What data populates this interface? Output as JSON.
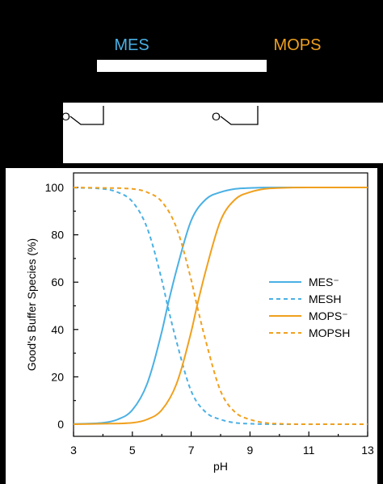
{
  "header": {
    "mes_label": "MES",
    "mops_label": "MOPS",
    "mes_color": "#4ab0e4",
    "mops_color": "#f0a01e"
  },
  "structures": {
    "mes_atom": "O",
    "mops_atom": "O"
  },
  "chart_data": {
    "type": "line",
    "xlabel": "pH",
    "ylabel": "Good's Buffer Species (%)",
    "xlim": [
      3,
      13
    ],
    "ylim": [
      0,
      100
    ],
    "xticks": [
      3,
      5,
      7,
      9,
      11,
      13
    ],
    "yticks": [
      0,
      20,
      40,
      60,
      80,
      100
    ],
    "grid": false,
    "legend_position": "center-right",
    "series": [
      {
        "name": "MES⁻",
        "color": "#4ab0e4",
        "dash": "solid",
        "x": [
          3,
          4,
          4.5,
          5,
          5.5,
          6,
          6.2,
          6.5,
          7,
          7.5,
          8,
          8.5,
          9,
          10,
          11,
          12,
          13
        ],
        "y": [
          0.1,
          0.6,
          2,
          6,
          17,
          39,
          50,
          65,
          86,
          95,
          98,
          99.4,
          99.8,
          100,
          100,
          100,
          100
        ]
      },
      {
        "name": "MESH",
        "color": "#4ab0e4",
        "dash": "dashed",
        "x": [
          3,
          4,
          4.5,
          5,
          5.5,
          6,
          6.2,
          6.5,
          7,
          7.5,
          8,
          8.5,
          9,
          10,
          11,
          12,
          13
        ],
        "y": [
          99.9,
          99.4,
          98,
          94,
          83,
          61,
          50,
          35,
          14,
          5,
          2,
          0.6,
          0.2,
          0,
          0,
          0,
          0
        ]
      },
      {
        "name": "MOPS⁻",
        "color": "#f0a01e",
        "dash": "solid",
        "x": [
          3,
          4,
          5,
          5.5,
          6,
          6.5,
          7,
          7.2,
          7.5,
          8,
          8.5,
          9,
          9.5,
          10,
          11,
          12,
          13
        ],
        "y": [
          0,
          0.2,
          0.6,
          2,
          6,
          17,
          39,
          50,
          65,
          86,
          95,
          98,
          99.4,
          99.8,
          100,
          100,
          100
        ]
      },
      {
        "name": "MOPSH",
        "color": "#f0a01e",
        "dash": "dashed",
        "x": [
          3,
          4,
          5,
          5.5,
          6,
          6.5,
          7,
          7.2,
          7.5,
          8,
          8.5,
          9,
          9.5,
          10,
          11,
          12,
          13
        ],
        "y": [
          100,
          99.8,
          99.4,
          98,
          94,
          83,
          61,
          50,
          35,
          14,
          5,
          2,
          0.6,
          0.2,
          0,
          0,
          0
        ]
      }
    ]
  }
}
